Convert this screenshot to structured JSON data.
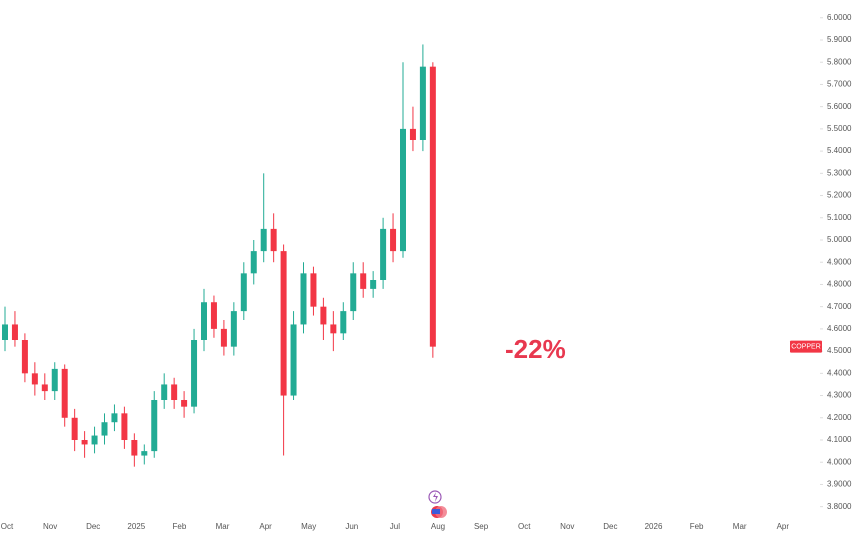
{
  "chart_data": {
    "type": "candlestick",
    "annotation": "-22%",
    "categories": [
      "Oct",
      "Nov",
      "Dec",
      "2025",
      "Feb",
      "Mar",
      "Apr",
      "May",
      "Jun",
      "Jul",
      "Aug",
      "Sep",
      "Oct",
      "Nov",
      "Dec",
      "2026",
      "Feb",
      "Mar",
      "Apr"
    ],
    "series": [
      {
        "name": "COPPER",
        "up_color": "#22ab94",
        "down_color": "#f23645",
        "open": [
          4.55,
          4.62,
          4.55,
          4.4,
          4.35,
          4.32,
          4.42,
          4.2,
          4.1,
          4.08,
          4.12,
          4.18,
          4.22,
          4.1,
          4.03,
          4.05,
          4.28,
          4.35,
          4.28,
          4.25,
          4.55,
          4.72,
          4.6,
          4.52,
          4.68,
          4.85,
          4.95,
          5.05,
          4.95,
          4.3,
          4.62,
          4.85,
          4.7,
          4.62,
          4.58,
          4.68,
          4.85,
          4.78,
          4.82,
          5.05,
          4.95,
          5.5,
          5.45,
          5.78
        ],
        "high": [
          4.7,
          4.68,
          4.58,
          4.45,
          4.4,
          4.45,
          4.44,
          4.24,
          4.14,
          4.16,
          4.22,
          4.26,
          4.25,
          4.13,
          4.08,
          4.32,
          4.4,
          4.38,
          4.32,
          4.6,
          4.78,
          4.75,
          4.64,
          4.72,
          4.9,
          5.0,
          5.3,
          5.12,
          4.98,
          4.68,
          4.9,
          4.88,
          4.74,
          4.68,
          4.72,
          4.9,
          4.9,
          4.86,
          5.1,
          5.12,
          5.8,
          5.6,
          5.88,
          5.8
        ],
        "low": [
          4.5,
          4.52,
          4.36,
          4.3,
          4.28,
          4.28,
          4.16,
          4.05,
          4.02,
          4.04,
          4.08,
          4.14,
          4.06,
          3.98,
          3.99,
          4.02,
          4.24,
          4.24,
          4.2,
          4.22,
          4.5,
          4.56,
          4.48,
          4.48,
          4.64,
          4.8,
          4.9,
          4.9,
          4.03,
          4.28,
          4.58,
          4.66,
          4.55,
          4.5,
          4.55,
          4.64,
          4.74,
          4.74,
          4.78,
          4.9,
          4.92,
          5.4,
          5.4,
          4.47
        ],
        "close": [
          4.62,
          4.55,
          4.4,
          4.35,
          4.32,
          4.42,
          4.2,
          4.1,
          4.08,
          4.12,
          4.18,
          4.22,
          4.1,
          4.03,
          4.05,
          4.28,
          4.35,
          4.28,
          4.25,
          4.55,
          4.72,
          4.6,
          4.52,
          4.68,
          4.85,
          4.95,
          5.05,
          4.95,
          4.3,
          4.62,
          4.85,
          4.7,
          4.62,
          4.58,
          4.68,
          4.85,
          4.78,
          4.82,
          5.05,
          4.95,
          5.5,
          5.45,
          5.78,
          4.52
        ]
      }
    ],
    "ylim": [
      3.74,
      6.08
    ],
    "yticks": [
      {
        "value": 3.8,
        "label": "3.8000"
      },
      {
        "value": 3.9,
        "label": "3.9000"
      },
      {
        "value": 4.0,
        "label": "4.0000"
      },
      {
        "value": 4.1,
        "label": "4.1000"
      },
      {
        "value": 4.2,
        "label": "4.2000"
      },
      {
        "value": 4.3,
        "label": "4.3000"
      },
      {
        "value": 4.4,
        "label": "4.4000"
      },
      {
        "value": 4.5,
        "label": "4.5000"
      },
      {
        "value": 4.6,
        "label": "4.6000"
      },
      {
        "value": 4.7,
        "label": "4.7000"
      },
      {
        "value": 4.8,
        "label": "4.8000"
      },
      {
        "value": 4.9,
        "label": "4.9000"
      },
      {
        "value": 5.0,
        "label": "5.0000"
      },
      {
        "value": 5.1,
        "label": "5.1000"
      },
      {
        "value": 5.2,
        "label": "5.2000"
      },
      {
        "value": 5.3,
        "label": "5.3000"
      },
      {
        "value": 5.4,
        "label": "5.4000"
      },
      {
        "value": 5.5,
        "label": "5.5000"
      },
      {
        "value": 5.6,
        "label": "5.6000"
      },
      {
        "value": 5.7,
        "label": "5.7000"
      },
      {
        "value": 5.8,
        "label": "5.8000"
      },
      {
        "value": 5.9,
        "label": "5.9000"
      },
      {
        "value": 6.0,
        "label": "6.0000"
      }
    ],
    "grid": false
  }
}
